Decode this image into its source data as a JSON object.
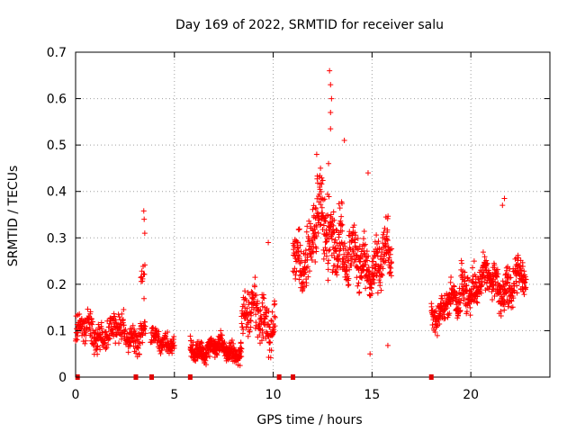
{
  "chart_data": {
    "type": "scatter",
    "title": "Day 169 of 2022, SRMTID for receiver salu",
    "xlabel": "GPS time / hours",
    "ylabel": "SRMTID / TECUs",
    "xlim": [
      0,
      24
    ],
    "ylim": [
      0,
      0.7
    ],
    "xticks": [
      0,
      5,
      10,
      15,
      20
    ],
    "yticks": [
      0,
      0.1,
      0.2,
      0.3,
      0.4,
      0.5,
      0.6,
      0.7
    ],
    "marker": "plus",
    "color": "#ff0000",
    "grid": true,
    "segments": [
      {
        "start": 0.0,
        "end": 3.55,
        "base": 0.095,
        "spread": 0.045,
        "step": 0.012
      },
      {
        "start": 3.3,
        "end": 3.5,
        "base": 0.2,
        "spread": 0.08,
        "step": 0.02
      },
      {
        "start": 3.8,
        "end": 5.0,
        "base": 0.08,
        "spread": 0.03,
        "step": 0.012
      },
      {
        "start": 5.8,
        "end": 8.4,
        "base": 0.06,
        "spread": 0.03,
        "step": 0.008
      },
      {
        "start": 8.4,
        "end": 10.1,
        "base": 0.13,
        "spread": 0.07,
        "step": 0.01
      },
      {
        "start": 11.0,
        "end": 12.0,
        "base": 0.27,
        "spread": 0.09,
        "step": 0.01
      },
      {
        "start": 12.0,
        "end": 13.5,
        "base": 0.32,
        "spread": 0.11,
        "step": 0.008
      },
      {
        "start": 13.5,
        "end": 16.0,
        "base": 0.25,
        "spread": 0.08,
        "step": 0.009
      },
      {
        "start": 18.0,
        "end": 19.5,
        "base": 0.15,
        "spread": 0.05,
        "step": 0.01
      },
      {
        "start": 19.5,
        "end": 22.8,
        "base": 0.2,
        "spread": 0.06,
        "step": 0.009
      }
    ],
    "peaks": [
      {
        "x": 3.45,
        "y": 0.358
      },
      {
        "x": 3.47,
        "y": 0.34
      },
      {
        "x": 3.5,
        "y": 0.31
      },
      {
        "x": 12.85,
        "y": 0.66
      },
      {
        "x": 12.9,
        "y": 0.63
      },
      {
        "x": 12.95,
        "y": 0.6
      },
      {
        "x": 12.9,
        "y": 0.57
      },
      {
        "x": 12.9,
        "y": 0.535
      },
      {
        "x": 13.6,
        "y": 0.51
      },
      {
        "x": 12.2,
        "y": 0.48
      },
      {
        "x": 12.8,
        "y": 0.46
      },
      {
        "x": 14.8,
        "y": 0.44
      },
      {
        "x": 21.7,
        "y": 0.385
      },
      {
        "x": 21.6,
        "y": 0.37
      },
      {
        "x": 9.75,
        "y": 0.29
      },
      {
        "x": 15.8,
        "y": 0.068
      },
      {
        "x": 14.9,
        "y": 0.05
      }
    ],
    "rug_x": [
      0.1,
      3.05,
      3.85,
      5.8,
      10.3,
      11.0,
      18.0
    ]
  }
}
